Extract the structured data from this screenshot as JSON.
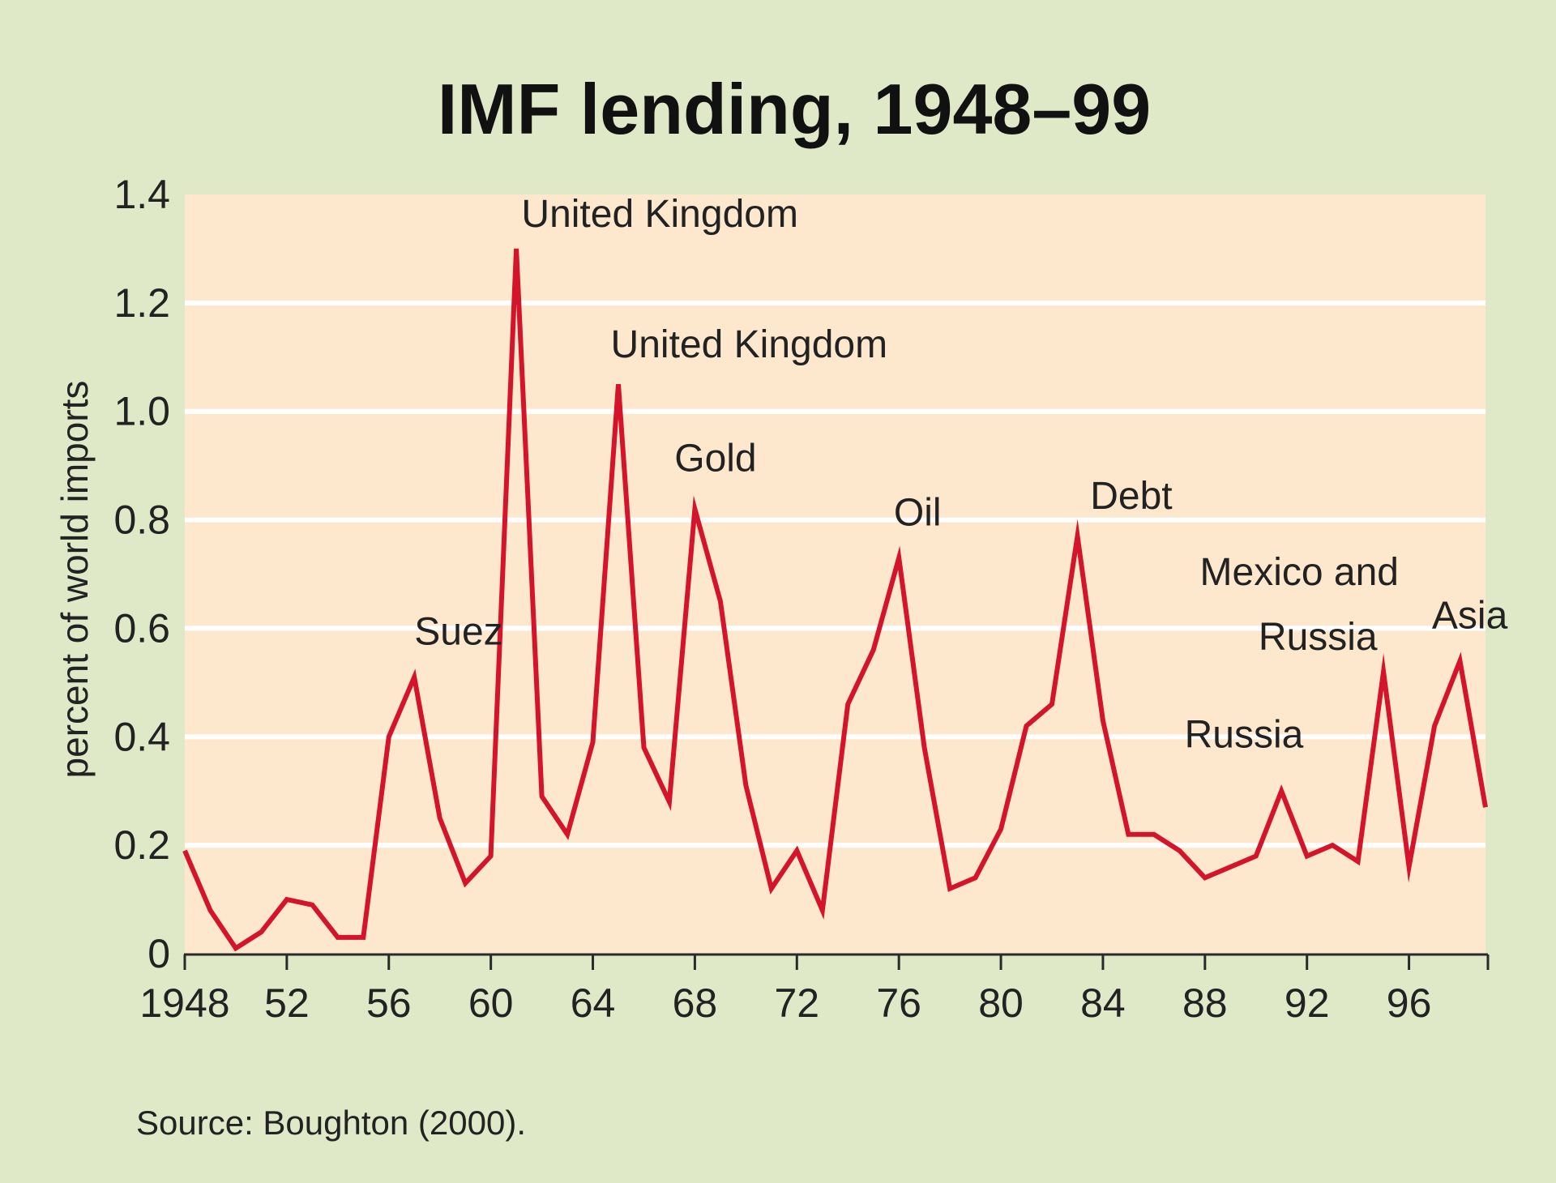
{
  "chart_data": {
    "type": "line",
    "title": "IMF lending, 1948–99",
    "ylabel": "percent of world imports",
    "xlabel": "",
    "source": "Source: Boughton (2000).",
    "xlim": [
      1948,
      1999
    ],
    "ylim": [
      0,
      1.4
    ],
    "grid": true,
    "x_ticks": [
      1948,
      1952,
      1956,
      1960,
      1964,
      1968,
      1972,
      1976,
      1980,
      1984,
      1988,
      1992,
      1996
    ],
    "x_tick_labels": [
      "1948",
      "52",
      "56",
      "60",
      "64",
      "68",
      "72",
      "76",
      "80",
      "84",
      "88",
      "92",
      "96"
    ],
    "y_ticks": [
      0,
      0.2,
      0.4,
      0.6,
      0.8,
      1.0,
      1.2,
      1.4
    ],
    "y_tick_labels": [
      "0",
      "0.2",
      "0.4",
      "0.6",
      "0.8",
      "1.0",
      "1.2",
      "1.4"
    ],
    "colors": {
      "line": "#d3142b",
      "plot_bg": "#fde8cd",
      "page_bg": "#dfe8c7",
      "grid": "#ffffff"
    },
    "series": [
      {
        "x": [
          1948,
          1949,
          1950,
          1951,
          1952,
          1953,
          1954,
          1955,
          1956,
          1957,
          1958,
          1959,
          1960,
          1961,
          1962,
          1963,
          1964,
          1965,
          1966,
          1967,
          1968,
          1969,
          1970,
          1971,
          1972,
          1973,
          1974,
          1975,
          1976,
          1977,
          1978,
          1979,
          1980,
          1981,
          1982,
          1983,
          1984,
          1985,
          1986,
          1987,
          1988,
          1989,
          1990,
          1991,
          1992,
          1993,
          1994,
          1995,
          1996,
          1997,
          1998,
          1999
        ],
        "y": [
          0.19,
          0.08,
          0.01,
          0.04,
          0.1,
          0.09,
          0.03,
          0.03,
          0.4,
          0.51,
          0.25,
          0.13,
          0.18,
          1.3,
          0.29,
          0.22,
          0.39,
          1.05,
          0.38,
          0.28,
          0.82,
          0.65,
          0.31,
          0.12,
          0.19,
          0.08,
          0.46,
          0.56,
          0.73,
          0.38,
          0.12,
          0.14,
          0.23,
          0.42,
          0.46,
          0.77,
          0.43,
          0.22,
          0.22,
          0.19,
          0.14,
          0.16,
          0.18,
          0.3,
          0.18,
          0.2,
          0.17,
          0.52,
          0.16,
          0.42,
          0.54,
          0.27
        ]
      }
    ],
    "annotations": [
      {
        "text": "Suez",
        "x": 1957,
        "y": 0.57
      },
      {
        "text": "United Kingdom",
        "x": 1961.2,
        "y": 1.34
      },
      {
        "text": "United Kingdom",
        "x": 1964.7,
        "y": 1.1
      },
      {
        "text": "Gold",
        "x": 1967.2,
        "y": 0.89
      },
      {
        "text": "Oil",
        "x": 1975.8,
        "y": 0.79
      },
      {
        "text": "Debt",
        "x": 1983.5,
        "y": 0.82
      },
      {
        "text": "Mexico and",
        "x": 1987.8,
        "y": 0.68
      },
      {
        "text": "Russia",
        "x": 1990.1,
        "y": 0.56
      },
      {
        "text": "Russia",
        "x": 1987.2,
        "y": 0.38
      },
      {
        "text": "Asia",
        "x": 1996.9,
        "y": 0.6
      }
    ]
  }
}
